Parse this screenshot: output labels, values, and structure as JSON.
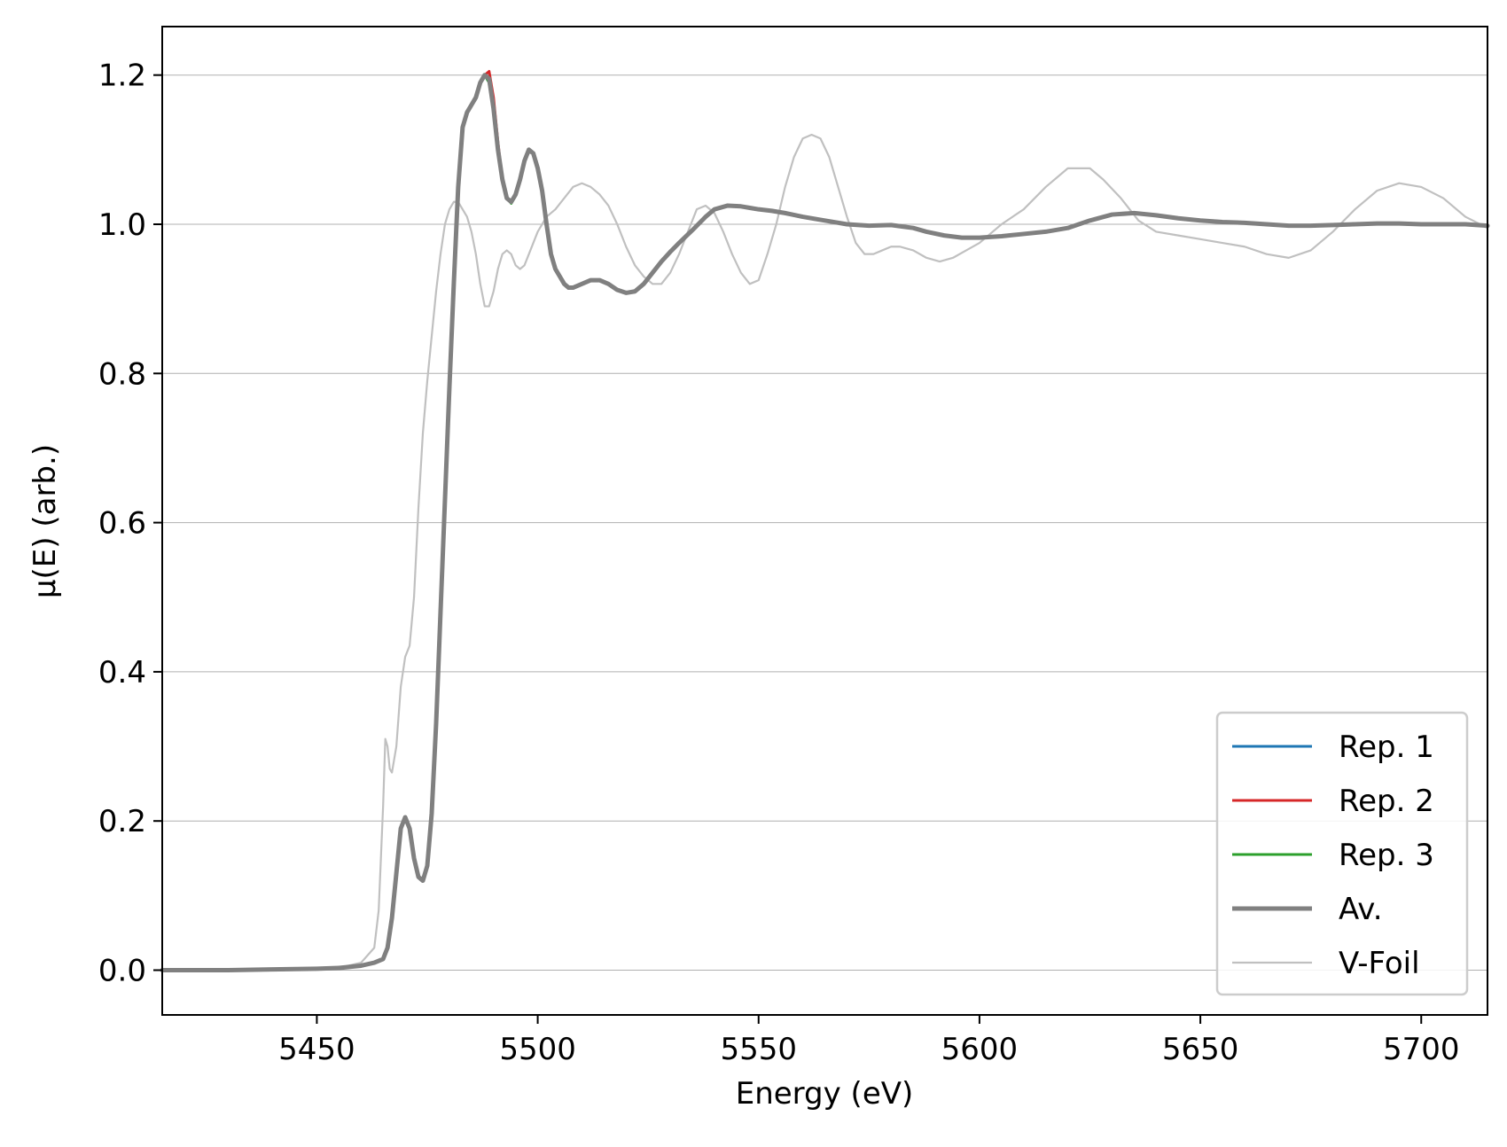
{
  "chart_data": {
    "type": "line",
    "title": "",
    "xlabel": "Energy (eV)",
    "ylabel": "μ(E) (arb.)",
    "xlim": [
      5415,
      5715
    ],
    "ylim": [
      -0.06,
      1.265
    ],
    "xticks": [
      5450,
      5500,
      5550,
      5600,
      5650,
      5700
    ],
    "yticks": [
      0.0,
      0.2,
      0.4,
      0.6,
      0.8,
      1.0,
      1.2
    ],
    "xtick_labels": [
      "5450",
      "5500",
      "5550",
      "5600",
      "5650",
      "5700"
    ],
    "ytick_labels": [
      "0.0",
      "0.2",
      "0.4",
      "0.6",
      "0.8",
      "1.0",
      "1.2"
    ],
    "grid": "horizontal",
    "legend_position": "lower-right",
    "series": [
      {
        "name": "Rep. 1",
        "color": "#1f77b4",
        "x": [
          5415,
          5430,
          5440,
          5450,
          5455,
          5460,
          5463,
          5465,
          5466,
          5467,
          5468,
          5469,
          5470,
          5471,
          5472,
          5473,
          5474,
          5475,
          5476,
          5477,
          5478,
          5479,
          5480,
          5481,
          5482,
          5483,
          5484,
          5485,
          5486,
          5487,
          5488,
          5489,
          5490,
          5491,
          5492,
          5493,
          5494,
          5495,
          5496,
          5497,
          5498,
          5499,
          5500,
          5501,
          5502,
          5503,
          5504,
          5505,
          5506,
          5507,
          5508,
          5510,
          5512,
          5514,
          5516,
          5518,
          5520,
          5522,
          5524,
          5526,
          5528,
          5530,
          5532,
          5535,
          5538,
          5540,
          5543,
          5546,
          5548,
          5550,
          5553,
          5556,
          5560,
          5565,
          5570,
          5575,
          5580,
          5585,
          5588,
          5592,
          5596,
          5600,
          5605,
          5610,
          5615,
          5620,
          5625,
          5630,
          5635,
          5640,
          5645,
          5650,
          5655,
          5660,
          5665,
          5670,
          5675,
          5680,
          5685,
          5690,
          5695,
          5700,
          5705,
          5710,
          5715
        ],
        "y": [
          0.0,
          0.0,
          0.001,
          0.002,
          0.003,
          0.006,
          0.01,
          0.015,
          0.03,
          0.07,
          0.13,
          0.19,
          0.205,
          0.19,
          0.15,
          0.125,
          0.12,
          0.14,
          0.21,
          0.33,
          0.48,
          0.63,
          0.78,
          0.92,
          1.05,
          1.13,
          1.15,
          1.16,
          1.17,
          1.19,
          1.2,
          1.19,
          1.15,
          1.1,
          1.06,
          1.035,
          1.03,
          1.04,
          1.06,
          1.085,
          1.1,
          1.095,
          1.075,
          1.045,
          1.0,
          0.96,
          0.94,
          0.93,
          0.92,
          0.915,
          0.915,
          0.92,
          0.925,
          0.925,
          0.92,
          0.912,
          0.908,
          0.91,
          0.92,
          0.935,
          0.95,
          0.963,
          0.975,
          0.992,
          1.01,
          1.02,
          1.025,
          1.024,
          1.022,
          1.02,
          1.018,
          1.015,
          1.01,
          1.005,
          1.0,
          0.998,
          0.999,
          0.995,
          0.99,
          0.985,
          0.982,
          0.982,
          0.984,
          0.987,
          0.99,
          0.995,
          1.005,
          1.013,
          1.015,
          1.012,
          1.008,
          1.005,
          1.003,
          1.002,
          1.0,
          0.998,
          0.998,
          0.999,
          1.0,
          1.001,
          1.001,
          1.0,
          1.0,
          1.0,
          0.998
        ]
      },
      {
        "name": "Rep. 2",
        "color": "#d62728",
        "x": [
          5415,
          5430,
          5440,
          5450,
          5455,
          5460,
          5463,
          5465,
          5466,
          5467,
          5468,
          5469,
          5470,
          5471,
          5472,
          5473,
          5474,
          5475,
          5476,
          5477,
          5478,
          5479,
          5480,
          5481,
          5482,
          5483,
          5484,
          5485,
          5486,
          5487,
          5488,
          5489,
          5490,
          5491,
          5492,
          5493,
          5494,
          5495,
          5496,
          5497,
          5498,
          5499,
          5500,
          5501,
          5502,
          5503,
          5504,
          5505,
          5506,
          5507,
          5508,
          5510,
          5512,
          5514,
          5516,
          5518,
          5520,
          5522,
          5524,
          5526,
          5528,
          5530,
          5532,
          5535,
          5538,
          5540,
          5543,
          5546,
          5548,
          5550,
          5553,
          5556,
          5560,
          5565,
          5570,
          5575,
          5580,
          5585,
          5588,
          5592,
          5596,
          5600,
          5605,
          5610,
          5615,
          5620,
          5625,
          5630,
          5635,
          5640,
          5645,
          5650,
          5655,
          5660,
          5665,
          5670,
          5675,
          5680,
          5685,
          5690,
          5695,
          5700,
          5705,
          5710,
          5715
        ],
        "y": [
          0.0,
          0.0,
          0.001,
          0.002,
          0.003,
          0.006,
          0.01,
          0.015,
          0.03,
          0.07,
          0.13,
          0.19,
          0.205,
          0.19,
          0.15,
          0.125,
          0.12,
          0.14,
          0.21,
          0.33,
          0.48,
          0.63,
          0.78,
          0.92,
          1.05,
          1.13,
          1.15,
          1.16,
          1.17,
          1.19,
          1.2,
          1.205,
          1.17,
          1.11,
          1.06,
          1.035,
          1.03,
          1.04,
          1.06,
          1.085,
          1.1,
          1.095,
          1.075,
          1.045,
          1.0,
          0.96,
          0.94,
          0.93,
          0.92,
          0.915,
          0.915,
          0.92,
          0.925,
          0.925,
          0.92,
          0.912,
          0.908,
          0.91,
          0.92,
          0.935,
          0.95,
          0.963,
          0.975,
          0.992,
          1.01,
          1.02,
          1.025,
          1.024,
          1.022,
          1.02,
          1.018,
          1.015,
          1.01,
          1.005,
          1.0,
          0.998,
          0.999,
          0.995,
          0.99,
          0.985,
          0.982,
          0.982,
          0.984,
          0.987,
          0.99,
          0.995,
          1.005,
          1.013,
          1.015,
          1.012,
          1.008,
          1.005,
          1.003,
          1.002,
          1.0,
          0.998,
          0.998,
          0.999,
          1.0,
          1.001,
          1.001,
          1.0,
          1.0,
          1.0,
          0.998
        ]
      },
      {
        "name": "Rep. 3",
        "color": "#2ca02c",
        "x": [
          5415,
          5430,
          5440,
          5450,
          5455,
          5460,
          5463,
          5465,
          5466,
          5467,
          5468,
          5469,
          5470,
          5471,
          5472,
          5473,
          5474,
          5475,
          5476,
          5477,
          5478,
          5479,
          5480,
          5481,
          5482,
          5483,
          5484,
          5485,
          5486,
          5487,
          5488,
          5489,
          5490,
          5491,
          5492,
          5493,
          5494,
          5495,
          5496,
          5497,
          5498,
          5499,
          5500,
          5501,
          5502,
          5503,
          5504,
          5505,
          5506,
          5507,
          5508,
          5510,
          5512,
          5514,
          5516,
          5518,
          5520,
          5522,
          5524,
          5526,
          5528,
          5530,
          5532,
          5535,
          5538,
          5540,
          5543,
          5546,
          5548,
          5550,
          5553,
          5556,
          5560,
          5565,
          5570,
          5575,
          5580,
          5585,
          5588,
          5592,
          5596,
          5600,
          5605,
          5610,
          5615,
          5620,
          5625,
          5630,
          5635,
          5640,
          5645,
          5650,
          5655,
          5660,
          5665,
          5670,
          5675,
          5680,
          5685,
          5690,
          5695,
          5700,
          5705,
          5710,
          5715
        ],
        "y": [
          0.0,
          0.0,
          0.001,
          0.002,
          0.003,
          0.006,
          0.01,
          0.015,
          0.03,
          0.07,
          0.13,
          0.19,
          0.205,
          0.19,
          0.15,
          0.125,
          0.12,
          0.14,
          0.21,
          0.33,
          0.48,
          0.63,
          0.78,
          0.92,
          1.05,
          1.13,
          1.15,
          1.16,
          1.17,
          1.19,
          1.2,
          1.19,
          1.15,
          1.1,
          1.06,
          1.035,
          1.028,
          1.038,
          1.06,
          1.085,
          1.1,
          1.095,
          1.075,
          1.045,
          1.0,
          0.96,
          0.94,
          0.93,
          0.92,
          0.915,
          0.915,
          0.92,
          0.925,
          0.925,
          0.92,
          0.912,
          0.908,
          0.91,
          0.92,
          0.935,
          0.95,
          0.963,
          0.975,
          0.992,
          1.01,
          1.02,
          1.025,
          1.024,
          1.022,
          1.02,
          1.018,
          1.015,
          1.01,
          1.005,
          1.0,
          0.998,
          0.999,
          0.995,
          0.99,
          0.985,
          0.982,
          0.982,
          0.984,
          0.987,
          0.99,
          0.995,
          1.005,
          1.013,
          1.015,
          1.012,
          1.008,
          1.005,
          1.003,
          1.002,
          1.0,
          0.998,
          0.998,
          0.999,
          1.0,
          1.001,
          1.001,
          1.0,
          1.0,
          1.0,
          0.998
        ]
      },
      {
        "name": "Av.",
        "color": "#808080",
        "x": [
          5415,
          5430,
          5440,
          5450,
          5455,
          5460,
          5463,
          5465,
          5466,
          5467,
          5468,
          5469,
          5470,
          5471,
          5472,
          5473,
          5474,
          5475,
          5476,
          5477,
          5478,
          5479,
          5480,
          5481,
          5482,
          5483,
          5484,
          5485,
          5486,
          5487,
          5488,
          5489,
          5490,
          5491,
          5492,
          5493,
          5494,
          5495,
          5496,
          5497,
          5498,
          5499,
          5500,
          5501,
          5502,
          5503,
          5504,
          5505,
          5506,
          5507,
          5508,
          5510,
          5512,
          5514,
          5516,
          5518,
          5520,
          5522,
          5524,
          5526,
          5528,
          5530,
          5532,
          5535,
          5538,
          5540,
          5543,
          5546,
          5548,
          5550,
          5553,
          5556,
          5560,
          5565,
          5570,
          5575,
          5580,
          5585,
          5588,
          5592,
          5596,
          5600,
          5605,
          5610,
          5615,
          5620,
          5625,
          5630,
          5635,
          5640,
          5645,
          5650,
          5655,
          5660,
          5665,
          5670,
          5675,
          5680,
          5685,
          5690,
          5695,
          5700,
          5705,
          5710,
          5715
        ],
        "y": [
          0.0,
          0.0,
          0.001,
          0.002,
          0.003,
          0.006,
          0.01,
          0.015,
          0.03,
          0.07,
          0.13,
          0.19,
          0.205,
          0.19,
          0.15,
          0.125,
          0.12,
          0.14,
          0.21,
          0.33,
          0.48,
          0.63,
          0.78,
          0.92,
          1.05,
          1.13,
          1.15,
          1.16,
          1.17,
          1.19,
          1.2,
          1.195,
          1.155,
          1.1,
          1.06,
          1.035,
          1.03,
          1.04,
          1.06,
          1.085,
          1.1,
          1.095,
          1.075,
          1.045,
          1.0,
          0.96,
          0.94,
          0.93,
          0.92,
          0.915,
          0.915,
          0.92,
          0.925,
          0.925,
          0.92,
          0.912,
          0.908,
          0.91,
          0.92,
          0.935,
          0.95,
          0.963,
          0.975,
          0.992,
          1.01,
          1.02,
          1.025,
          1.024,
          1.022,
          1.02,
          1.018,
          1.015,
          1.01,
          1.005,
          1.0,
          0.998,
          0.999,
          0.995,
          0.99,
          0.985,
          0.982,
          0.982,
          0.984,
          0.987,
          0.99,
          0.995,
          1.005,
          1.013,
          1.015,
          1.012,
          1.008,
          1.005,
          1.003,
          1.002,
          1.0,
          0.998,
          0.998,
          0.999,
          1.0,
          1.001,
          1.001,
          1.0,
          1.0,
          1.0,
          0.998
        ]
      },
      {
        "name": "V-Foil",
        "color": "#c0c0c0",
        "x": [
          5415,
          5440,
          5455,
          5460,
          5463,
          5464,
          5465,
          5465.5,
          5466,
          5466.5,
          5467,
          5468,
          5469,
          5470,
          5471,
          5472,
          5473,
          5474,
          5475,
          5476,
          5477,
          5478,
          5479,
          5480,
          5481,
          5482,
          5483,
          5484,
          5485,
          5486,
          5487,
          5488,
          5489,
          5490,
          5491,
          5492,
          5493,
          5494,
          5495,
          5496,
          5497,
          5498,
          5500,
          5502,
          5504,
          5506,
          5508,
          5510,
          5512,
          5514,
          5516,
          5518,
          5520,
          5522,
          5524,
          5526,
          5528,
          5530,
          5532,
          5534,
          5536,
          5538,
          5540,
          5542,
          5544,
          5546,
          5548,
          5550,
          5552,
          5554,
          5556,
          5558,
          5560,
          5562,
          5564,
          5566,
          5568,
          5570,
          5572,
          5574,
          5576,
          5578,
          5580,
          5582,
          5585,
          5588,
          5591,
          5594,
          5597,
          5600,
          5605,
          5610,
          5615,
          5620,
          5625,
          5628,
          5632,
          5636,
          5640,
          5645,
          5650,
          5655,
          5660,
          5665,
          5670,
          5675,
          5680,
          5685,
          5690,
          5695,
          5700,
          5705,
          5710,
          5715
        ],
        "y": [
          0.0,
          0.001,
          0.003,
          0.01,
          0.03,
          0.08,
          0.22,
          0.31,
          0.3,
          0.27,
          0.265,
          0.3,
          0.38,
          0.42,
          0.435,
          0.5,
          0.62,
          0.72,
          0.79,
          0.85,
          0.91,
          0.96,
          1.0,
          1.02,
          1.03,
          1.03,
          1.02,
          1.01,
          0.99,
          0.96,
          0.92,
          0.89,
          0.89,
          0.91,
          0.94,
          0.96,
          0.965,
          0.96,
          0.945,
          0.94,
          0.945,
          0.96,
          0.99,
          1.01,
          1.02,
          1.035,
          1.05,
          1.055,
          1.05,
          1.04,
          1.025,
          1.0,
          0.97,
          0.945,
          0.93,
          0.92,
          0.92,
          0.935,
          0.96,
          0.99,
          1.02,
          1.025,
          1.015,
          0.99,
          0.96,
          0.935,
          0.92,
          0.925,
          0.96,
          1.0,
          1.05,
          1.09,
          1.115,
          1.12,
          1.115,
          1.09,
          1.05,
          1.01,
          0.975,
          0.96,
          0.96,
          0.965,
          0.97,
          0.97,
          0.965,
          0.955,
          0.95,
          0.955,
          0.965,
          0.975,
          1.0,
          1.02,
          1.05,
          1.075,
          1.075,
          1.06,
          1.035,
          1.005,
          0.99,
          0.985,
          0.98,
          0.975,
          0.97,
          0.96,
          0.955,
          0.965,
          0.99,
          1.02,
          1.045,
          1.055,
          1.05,
          1.035,
          1.01,
          0.995
        ]
      }
    ]
  }
}
